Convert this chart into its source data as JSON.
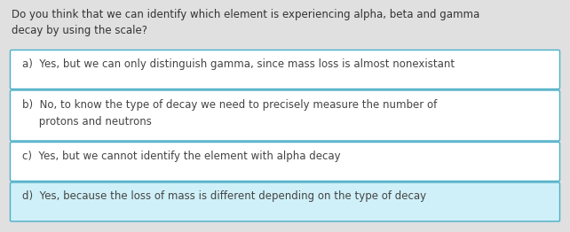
{
  "question": "Do you think that we can identify which element is experiencing alpha, beta and gamma\ndecay by using the scale?",
  "option_texts": [
    "a)  Yes, but we can only distinguish gamma, since mass loss is almost nonexistant",
    "b)  No, to know the type of decay we need to precisely measure the number of\n     protons and neutrons",
    "c)  Yes, but we cannot identify the element with alpha decay",
    "d)  Yes, because the loss of mass is different depending on the type of decay"
  ],
  "highlight": [
    false,
    false,
    false,
    true
  ],
  "bg_color": "#e0e0e0",
  "box_bg_color": "#ffffff",
  "box_bg_highlight": "#cff0f8",
  "box_border_color": "#4aafc8",
  "question_color": "#333333",
  "text_color": "#444444",
  "question_fontsize": 8.5,
  "option_fontsize": 8.5
}
